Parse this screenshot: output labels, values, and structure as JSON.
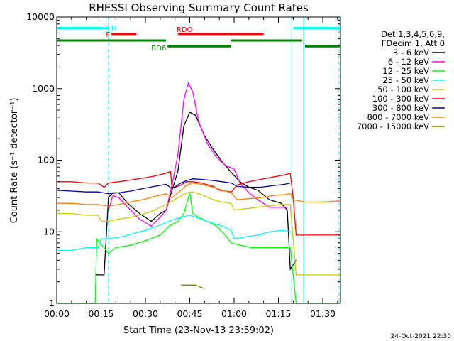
{
  "chart_data": {
    "type": "line",
    "title": "RHESSI Observing Summary Count Rates",
    "xlabel": "Start Time (23-Nov-13 23:59:02)",
    "ylabel": "Count Rate (s⁻¹ detector⁻¹)",
    "y_scale": "log",
    "ylim": [
      1,
      10000
    ],
    "xlim_minutes": [
      0,
      96
    ],
    "x_ticks": [
      {
        "t": 0,
        "label": "00:00"
      },
      {
        "t": 15,
        "label": "00:15"
      },
      {
        "t": 30,
        "label": "00:30"
      },
      {
        "t": 45,
        "label": "00:45"
      },
      {
        "t": 60,
        "label": "01:00"
      },
      {
        "t": 75,
        "label": "01:15"
      },
      {
        "t": 90,
        "label": "01:30"
      }
    ],
    "y_ticks": [
      {
        "v": 1,
        "label": "1"
      },
      {
        "v": 10,
        "label": "10"
      },
      {
        "v": 100,
        "label": "100"
      },
      {
        "v": 1000,
        "label": "1000"
      },
      {
        "v": 10000,
        "label": "10000"
      }
    ],
    "legend_header": [
      "Det 1,3,4,5,6,9,",
      "FDecim 1, Att 0"
    ],
    "legend_position": "right",
    "timestamp": "24-Oct-2021 22:30",
    "flag_bars": [
      {
        "label": "N",
        "color": "#00ffff",
        "level": 7000,
        "segments": [
          [
            0,
            17.5
          ],
          [
            80,
            96
          ]
        ]
      },
      {
        "label": "F",
        "color": "#ff0000",
        "level": 5800,
        "segments": [
          [
            18.5,
            27
          ]
        ]
      },
      {
        "label": "RDO",
        "color": "#ff0000",
        "level": 5800,
        "segments": [
          [
            41,
            70
          ]
        ]
      },
      {
        "label": "",
        "color": "#008000",
        "level": 4700,
        "segments": [
          [
            0,
            37
          ],
          [
            59,
            83
          ]
        ]
      },
      {
        "label": "RD6",
        "color": "#008000",
        "level": 3900,
        "segments": [
          [
            37.5,
            59
          ],
          [
            84,
            96
          ]
        ]
      }
    ],
    "vlines": [
      {
        "t": 0,
        "color": "#00ffff",
        "style": "solid"
      },
      {
        "t": 17.5,
        "color": "#00ffff",
        "style": "dashed"
      },
      {
        "t": 79.5,
        "color": "#00ffff",
        "style": "solid"
      },
      {
        "t": 83.5,
        "color": "#00ffff",
        "style": "solid"
      },
      {
        "t": 95.5,
        "color": "#00ffff",
        "style": "dashed"
      }
    ],
    "series": [
      {
        "name": "3 - 6 keV",
        "color": "#000000",
        "points": [
          [
            13,
            2.5
          ],
          [
            16,
            2.5
          ],
          [
            17.5,
            30
          ],
          [
            19,
            35
          ],
          [
            21,
            35
          ],
          [
            24,
            25
          ],
          [
            28,
            18
          ],
          [
            32,
            14
          ],
          [
            35,
            18
          ],
          [
            37,
            20
          ],
          [
            39,
            38
          ],
          [
            41,
            70
          ],
          [
            43,
            300
          ],
          [
            45,
            470
          ],
          [
            47,
            420
          ],
          [
            50,
            220
          ],
          [
            53,
            140
          ],
          [
            56,
            95
          ],
          [
            59,
            68
          ],
          [
            62,
            50
          ],
          [
            65,
            42
          ],
          [
            68,
            38
          ],
          [
            72,
            28
          ],
          [
            76,
            25
          ],
          [
            78,
            20
          ],
          [
            79,
            3
          ],
          [
            81,
            4
          ]
        ]
      },
      {
        "name": "6 - 12 keV",
        "color": "#ff00ff",
        "points": [
          [
            17.5,
            20
          ],
          [
            19,
            32
          ],
          [
            21,
            30
          ],
          [
            24,
            22
          ],
          [
            28,
            15
          ],
          [
            32,
            12
          ],
          [
            35,
            16
          ],
          [
            37,
            20
          ],
          [
            39,
            45
          ],
          [
            41,
            120
          ],
          [
            43,
            700
          ],
          [
            44.5,
            1200
          ],
          [
            46,
            900
          ],
          [
            48,
            350
          ],
          [
            51,
            170
          ],
          [
            54,
            110
          ],
          [
            57,
            85
          ],
          [
            60,
            75
          ],
          [
            62,
            48
          ],
          [
            65,
            35
          ],
          [
            68,
            28
          ],
          [
            72,
            22
          ],
          [
            76,
            22
          ],
          [
            78,
            22
          ]
        ]
      },
      {
        "name": "12 - 25 keV",
        "color": "#00ff00",
        "points": [
          [
            0,
            1
          ],
          [
            13,
            1
          ],
          [
            13.5,
            8
          ],
          [
            17.5,
            5
          ],
          [
            20,
            6
          ],
          [
            25,
            6.5
          ],
          [
            30,
            7.5
          ],
          [
            35,
            9
          ],
          [
            38,
            12
          ],
          [
            41,
            14
          ],
          [
            43,
            18
          ],
          [
            45,
            35
          ],
          [
            46,
            18
          ],
          [
            48,
            16
          ],
          [
            51,
            14
          ],
          [
            54,
            12
          ],
          [
            57,
            9
          ],
          [
            59,
            7
          ],
          [
            62,
            6.5
          ],
          [
            66,
            6
          ],
          [
            70,
            6
          ],
          [
            75,
            6
          ],
          [
            79,
            6
          ],
          [
            81,
            1
          ],
          [
            96,
            1
          ]
        ]
      },
      {
        "name": "25 - 50 keV",
        "color": "#00ffff",
        "points": [
          [
            0,
            5.5
          ],
          [
            5,
            5.5
          ],
          [
            10,
            6
          ],
          [
            14,
            6
          ],
          [
            15,
            8
          ],
          [
            17.5,
            8
          ],
          [
            22,
            8.5
          ],
          [
            26,
            9.5
          ],
          [
            30,
            10.5
          ],
          [
            34,
            12
          ],
          [
            38,
            14
          ],
          [
            42,
            16
          ],
          [
            45,
            17
          ],
          [
            48,
            15.5
          ],
          [
            52,
            13.5
          ],
          [
            56,
            12
          ],
          [
            59,
            10.5
          ],
          [
            60,
            8
          ],
          [
            64,
            8.5
          ],
          [
            68,
            9
          ],
          [
            72,
            10
          ],
          [
            76,
            10.5
          ],
          [
            79,
            10
          ]
        ]
      },
      {
        "name": "50 - 100 keV",
        "color": "#cccc00",
        "points": [
          [
            0,
            18
          ],
          [
            5,
            18
          ],
          [
            10,
            17
          ],
          [
            14,
            17
          ],
          [
            15,
            14
          ],
          [
            17.5,
            14
          ],
          [
            21,
            15
          ],
          [
            25,
            16
          ],
          [
            29,
            17.5
          ],
          [
            33,
            20
          ],
          [
            37,
            24
          ],
          [
            41,
            30
          ],
          [
            44,
            35
          ],
          [
            46,
            36
          ],
          [
            49,
            33
          ],
          [
            53,
            28
          ],
          [
            56,
            26
          ],
          [
            59,
            25
          ],
          [
            60,
            20
          ],
          [
            64,
            21
          ],
          [
            68,
            22
          ],
          [
            72,
            23
          ],
          [
            76,
            24
          ],
          [
            79,
            24
          ],
          [
            81,
            2.5
          ],
          [
            96,
            2.5
          ]
        ]
      },
      {
        "name": "100 - 300 keV",
        "color": "#ff0000",
        "points": [
          [
            0,
            50
          ],
          [
            5,
            50
          ],
          [
            10,
            48
          ],
          [
            14,
            48
          ],
          [
            16,
            42
          ],
          [
            17.5,
            48
          ],
          [
            21,
            50
          ],
          [
            25,
            53
          ],
          [
            29,
            56
          ],
          [
            33,
            60
          ],
          [
            37,
            66
          ],
          [
            38.5,
            70
          ],
          [
            39,
            40
          ],
          [
            42,
            45
          ],
          [
            44,
            50
          ],
          [
            46,
            50
          ],
          [
            49,
            48
          ],
          [
            53,
            43
          ],
          [
            55,
            38
          ],
          [
            59,
            36
          ],
          [
            61,
            45
          ],
          [
            65,
            50
          ],
          [
            69,
            54
          ],
          [
            73,
            58
          ],
          [
            77,
            62
          ],
          [
            79,
            66
          ],
          [
            80,
            30
          ],
          [
            81,
            9
          ],
          [
            96,
            9
          ]
        ]
      },
      {
        "name": "300 - 800 keV",
        "color": "#0000aa",
        "points": [
          [
            0,
            38
          ],
          [
            5,
            37
          ],
          [
            10,
            36
          ],
          [
            14,
            36
          ],
          [
            17.5,
            34
          ],
          [
            21,
            35
          ],
          [
            25,
            37
          ],
          [
            29,
            40
          ],
          [
            33,
            43
          ],
          [
            37,
            46
          ],
          [
            39,
            40
          ],
          [
            42,
            48
          ],
          [
            44,
            52
          ],
          [
            46,
            55
          ],
          [
            49,
            54
          ],
          [
            53,
            52
          ],
          [
            56,
            50
          ],
          [
            59,
            48
          ],
          [
            61,
            43
          ],
          [
            65,
            42
          ],
          [
            69,
            42
          ],
          [
            73,
            44
          ],
          [
            77,
            46
          ],
          [
            79,
            48
          ]
        ]
      },
      {
        "name": "800 - 7000 keV",
        "color": "#ff8000",
        "points": [
          [
            0,
            25
          ],
          [
            5,
            25
          ],
          [
            10,
            24
          ],
          [
            14,
            24
          ],
          [
            17.5,
            23
          ],
          [
            21,
            24
          ],
          [
            25,
            26
          ],
          [
            29,
            28
          ],
          [
            33,
            31
          ],
          [
            37,
            34
          ],
          [
            39,
            30
          ],
          [
            42,
            38
          ],
          [
            44,
            45
          ],
          [
            46,
            48
          ],
          [
            49,
            46
          ],
          [
            53,
            42
          ],
          [
            56,
            38
          ],
          [
            59,
            35
          ],
          [
            61,
            28
          ],
          [
            65,
            29
          ],
          [
            69,
            30
          ],
          [
            73,
            32
          ],
          [
            77,
            33
          ],
          [
            79,
            34
          ],
          [
            80,
            28
          ],
          [
            84,
            26
          ],
          [
            90,
            26
          ],
          [
            96,
            27
          ]
        ]
      },
      {
        "name": "7000 - 15000 keV",
        "color": "#808000",
        "points": [
          [
            42,
            1.8
          ],
          [
            47,
            1.8
          ],
          [
            50,
            1.6
          ]
        ]
      }
    ]
  }
}
